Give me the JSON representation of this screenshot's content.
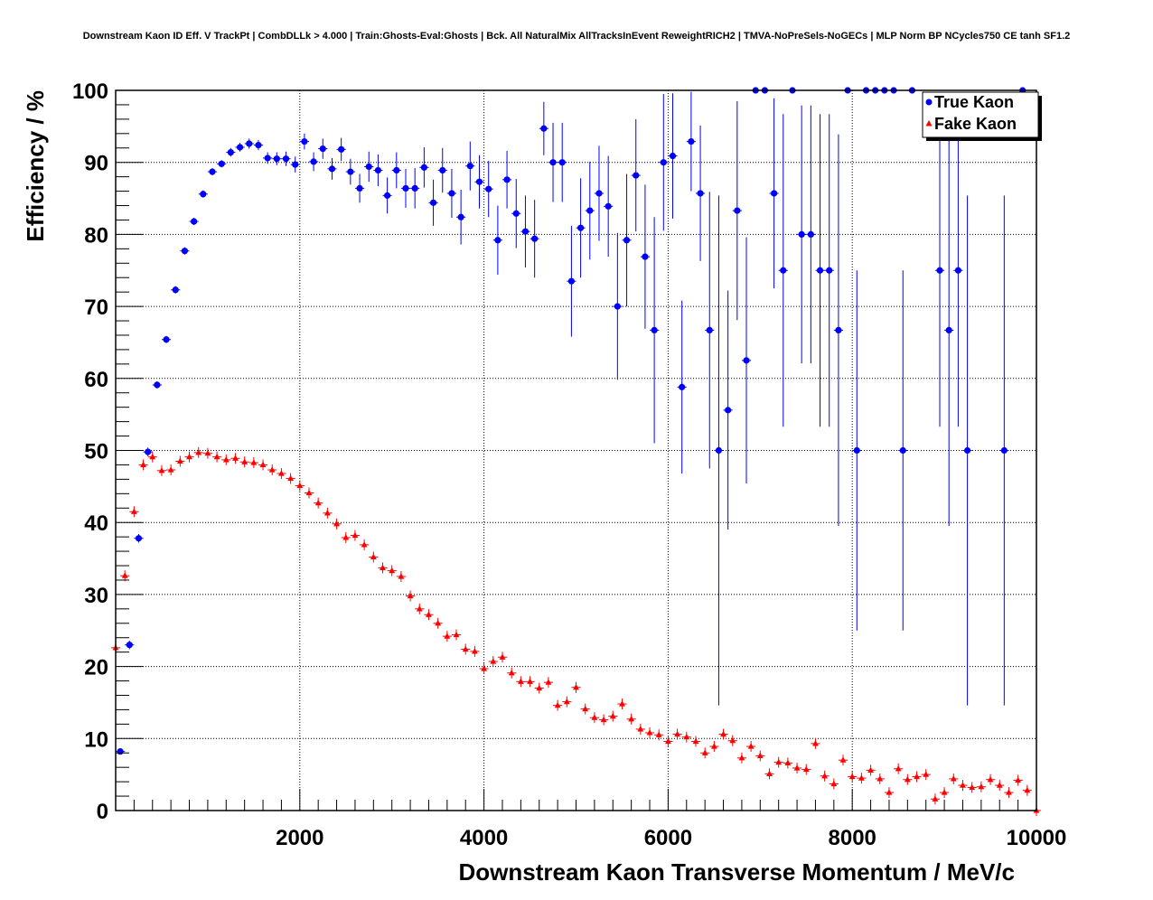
{
  "chart_data": {
    "type": "scatter",
    "title": "Downstream Kaon ID Eff. V TrackPt | CombDLLk > 4.000 | Train:Ghosts-Eval:Ghosts | Bck. All NaturalMix AllTracksInEvent ReweightRICH2 | TMVA-NoPreSels-NoGECs | MLP Norm BP NCycles750 CE tanh SF1.2",
    "xlabel": "Downstream Kaon Transverse Momentum / MeV/c",
    "ylabel": "Efficiency / %",
    "xlim": [
      0,
      10000
    ],
    "ylim": [
      0,
      100
    ],
    "x_ticks": [
      2000,
      4000,
      6000,
      8000,
      10000
    ],
    "y_ticks": [
      0,
      10,
      20,
      30,
      40,
      50,
      60,
      70,
      80,
      90,
      100
    ],
    "grid": true,
    "legend_position": "top-right",
    "series": [
      {
        "name": "True Kaon",
        "color": "#0000ff",
        "marker": "circle",
        "x": [
          50,
          150,
          250,
          350,
          450,
          550,
          650,
          750,
          850,
          950,
          1050,
          1150,
          1250,
          1350,
          1450,
          1550,
          1650,
          1750,
          1850,
          1950,
          2050,
          2150,
          2250,
          2350,
          2450,
          2550,
          2650,
          2750,
          2850,
          2950,
          3050,
          3150,
          3250,
          3350,
          3450,
          3550,
          3650,
          3750,
          3850,
          3950,
          4050,
          4150,
          4250,
          4350,
          4450,
          4550,
          4650,
          4750,
          4850,
          4950,
          5050,
          5150,
          5250,
          5350,
          5450,
          5550,
          5650,
          5750,
          5850,
          5950,
          6050,
          6150,
          6250,
          6350,
          6450,
          6550,
          6650,
          6750,
          6850,
          6950,
          7050,
          7150,
          7250,
          7350,
          7450,
          7550,
          7650,
          7750,
          7850,
          7950,
          8050,
          8150,
          8250,
          8350,
          8450,
          8550,
          8650,
          8950,
          9050,
          9150,
          9250,
          9650,
          9850
        ],
        "y": [
          8.2,
          23.0,
          37.8,
          49.8,
          59.1,
          65.4,
          72.3,
          77.7,
          81.8,
          85.6,
          88.7,
          89.8,
          91.4,
          92.1,
          92.6,
          92.4,
          90.6,
          90.5,
          90.5,
          89.7,
          92.9,
          90.1,
          91.9,
          89.1,
          91.8,
          88.7,
          86.4,
          89.4,
          88.9,
          85.4,
          88.9,
          86.4,
          86.4,
          89.3,
          84.4,
          88.9,
          85.7,
          82.4,
          89.5,
          87.3,
          86.3,
          79.2,
          87.6,
          82.9,
          80.4,
          79.4,
          94.7,
          90.0,
          90.0,
          73.5,
          80.9,
          83.3,
          85.7,
          83.9,
          70.0,
          79.2,
          88.2,
          76.9,
          66.7,
          90.0,
          90.9,
          58.8,
          92.9,
          85.7,
          66.7,
          50.0,
          55.6,
          83.3,
          62.5,
          100,
          100,
          85.7,
          75.0,
          100,
          80.0,
          80.0,
          75.0,
          75.0,
          66.7,
          100,
          50.0,
          100,
          100,
          100,
          100,
          50.0,
          100,
          75.0,
          66.7,
          75.0,
          50.0,
          50.0,
          100
        ],
        "err": [
          0.4,
          0.6,
          0.6,
          0.6,
          0.5,
          0.5,
          0.5,
          0.5,
          0.5,
          0.5,
          0.5,
          0.5,
          0.6,
          0.6,
          0.7,
          0.7,
          0.8,
          0.9,
          1.0,
          1.1,
          1.1,
          1.3,
          1.4,
          1.5,
          1.6,
          1.8,
          2.0,
          2.1,
          2.2,
          2.5,
          2.5,
          2.7,
          2.8,
          2.8,
          3.2,
          3.1,
          3.4,
          3.8,
          3.4,
          3.7,
          3.9,
          4.8,
          4.0,
          4.8,
          5.0,
          5.4,
          3.7,
          5.5,
          5.5,
          7.7,
          6.9,
          6.8,
          6.6,
          7.0,
          10.2,
          9.2,
          7.8,
          10.0,
          15.7,
          9.5,
          8.7,
          12.0,
          6.9,
          9.4,
          19.2,
          35.4,
          16.6,
          15.2,
          17.1,
          0,
          0,
          13.2,
          21.7,
          0,
          17.9,
          17.9,
          21.7,
          21.7,
          27.2,
          0,
          25.0,
          0,
          0,
          0,
          0,
          25.0,
          0,
          21.7,
          27.2,
          21.7,
          35.4,
          35.4,
          0
        ]
      },
      {
        "name": "Fake Kaon",
        "color": "#ff0000",
        "marker": "triangle",
        "x": [
          0,
          100,
          200,
          300,
          400,
          500,
          600,
          700,
          800,
          900,
          1000,
          1100,
          1200,
          1300,
          1400,
          1500,
          1600,
          1700,
          1800,
          1900,
          2000,
          2100,
          2200,
          2300,
          2400,
          2500,
          2600,
          2700,
          2800,
          2900,
          3000,
          3100,
          3200,
          3300,
          3400,
          3500,
          3600,
          3700,
          3800,
          3900,
          4000,
          4100,
          4200,
          4300,
          4400,
          4500,
          4600,
          4700,
          4800,
          4900,
          5000,
          5100,
          5200,
          5300,
          5400,
          5500,
          5600,
          5700,
          5800,
          5900,
          6000,
          6100,
          6200,
          6300,
          6400,
          6500,
          6600,
          6700,
          6800,
          6900,
          7000,
          7100,
          7200,
          7300,
          7400,
          7500,
          7600,
          7700,
          7800,
          7900,
          8000,
          8100,
          8200,
          8300,
          8400,
          8500,
          8600,
          8700,
          8800,
          8900,
          9000,
          9100,
          9200,
          9300,
          9400,
          9500,
          9600,
          9700,
          9800,
          9900,
          10000
        ],
        "y": [
          22.6,
          32.6,
          41.5,
          48.0,
          49.1,
          47.2,
          47.3,
          48.5,
          49.1,
          49.7,
          49.6,
          49.1,
          48.7,
          48.9,
          48.4,
          48.3,
          48.0,
          47.3,
          46.8,
          46.1,
          45.1,
          44.1,
          42.7,
          41.3,
          39.8,
          37.9,
          38.2,
          36.9,
          35.2,
          33.7,
          33.3,
          32.5,
          29.8,
          28.0,
          27.2,
          26.0,
          24.2,
          24.4,
          22.4,
          22.1,
          19.7,
          20.7,
          21.3,
          19.1,
          17.9,
          17.9,
          17.0,
          17.8,
          14.6,
          15.1,
          17.1,
          14.1,
          12.9,
          12.6,
          13.1,
          14.8,
          12.7,
          11.3,
          10.8,
          10.5,
          9.6,
          10.6,
          10.2,
          9.6,
          8.0,
          8.9,
          10.6,
          9.7,
          7.3,
          8.9,
          7.6,
          5.1,
          6.7,
          6.6,
          5.9,
          5.7,
          9.3,
          4.8,
          3.7,
          7.0,
          4.7,
          4.5,
          5.6,
          4.4,
          2.5,
          5.8,
          4.3,
          4.7,
          5.0,
          1.6,
          2.5,
          4.4,
          3.5,
          3.2,
          3.3,
          4.3,
          3.5,
          2.5,
          4.2,
          2.8,
          0
        ]
      }
    ]
  }
}
